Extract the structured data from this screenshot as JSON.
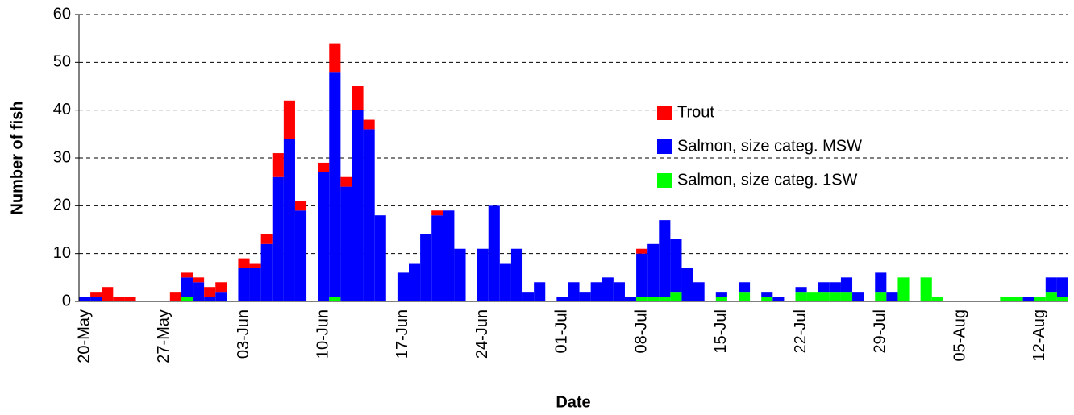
{
  "chart_data": {
    "type": "stacked-bar",
    "xlabel": "Date",
    "ylabel": "Number of fish",
    "categories": [
      "20-May",
      null,
      null,
      null,
      null,
      null,
      null,
      "27-May",
      null,
      null,
      null,
      null,
      null,
      null,
      "03-Jun",
      null,
      null,
      null,
      null,
      null,
      null,
      "10-Jun",
      null,
      null,
      null,
      null,
      null,
      null,
      "17-Jun",
      null,
      null,
      null,
      null,
      null,
      null,
      "24-Jun",
      null,
      null,
      null,
      null,
      null,
      null,
      "01-Jul",
      null,
      null,
      null,
      null,
      null,
      null,
      "08-Jul",
      null,
      null,
      null,
      null,
      null,
      null,
      "15-Jul",
      null,
      null,
      null,
      null,
      null,
      null,
      "22-Jul",
      null,
      null,
      null,
      null,
      null,
      null,
      "29-Jul",
      null,
      null,
      null,
      null,
      null,
      null,
      "05-Aug",
      null,
      null,
      null,
      null,
      null,
      null,
      "12-Aug",
      null,
      null
    ],
    "series": [
      {
        "name": "Trout",
        "color": "#ff0000",
        "values": [
          0,
          1,
          3,
          1,
          1,
          0,
          0,
          0,
          2,
          1,
          1,
          2,
          2,
          0,
          2,
          1,
          2,
          5,
          8,
          2,
          0,
          2,
          6,
          2,
          5,
          2,
          0,
          0,
          0,
          0,
          0,
          1,
          0,
          0,
          0,
          0,
          0,
          0,
          0,
          0,
          0,
          0,
          0,
          0,
          0,
          0,
          0,
          0,
          0,
          1,
          0,
          0,
          0,
          0,
          0,
          0,
          0,
          0,
          0,
          0,
          0,
          0,
          0,
          0,
          0,
          0,
          0,
          0,
          0,
          0,
          0,
          0,
          0,
          0,
          0,
          0,
          0,
          0,
          0,
          0,
          0,
          0,
          0,
          0,
          0,
          0,
          0
        ]
      },
      {
        "name": "Salmon, size categ. MSW",
        "color": "#0000ff",
        "values": [
          1,
          1,
          0,
          0,
          0,
          0,
          0,
          0,
          0,
          4,
          4,
          1,
          2,
          0,
          7,
          7,
          12,
          26,
          34,
          19,
          0,
          27,
          47,
          24,
          40,
          36,
          18,
          0,
          6,
          8,
          14,
          18,
          19,
          11,
          0,
          11,
          20,
          8,
          11,
          2,
          4,
          0,
          1,
          4,
          2,
          4,
          5,
          4,
          1,
          9,
          11,
          16,
          11,
          7,
          4,
          0,
          1,
          0,
          2,
          0,
          1,
          1,
          0,
          1,
          0,
          2,
          2,
          3,
          2,
          0,
          4,
          2,
          0,
          0,
          0,
          0,
          0,
          0,
          0,
          0,
          0,
          0,
          0,
          1,
          0,
          3,
          4
        ]
      },
      {
        "name": "Salmon, size categ. 1SW",
        "color": "#00ff00",
        "values": [
          0,
          0,
          0,
          0,
          0,
          0,
          0,
          0,
          0,
          1,
          0,
          0,
          0,
          0,
          0,
          0,
          0,
          0,
          0,
          0,
          0,
          0,
          1,
          0,
          0,
          0,
          0,
          0,
          0,
          0,
          0,
          0,
          0,
          0,
          0,
          0,
          0,
          0,
          0,
          0,
          0,
          0,
          0,
          0,
          0,
          0,
          0,
          0,
          0,
          1,
          1,
          1,
          2,
          0,
          0,
          0,
          1,
          0,
          2,
          0,
          1,
          0,
          0,
          2,
          2,
          2,
          2,
          2,
          0,
          0,
          2,
          0,
          5,
          0,
          5,
          1,
          0,
          0,
          0,
          0,
          0,
          1,
          1,
          0,
          1,
          2,
          1
        ]
      }
    ],
    "ylim": [
      0,
      60
    ],
    "yticks": [
      0,
      10,
      20,
      30,
      40,
      50,
      60
    ],
    "grid": true
  }
}
